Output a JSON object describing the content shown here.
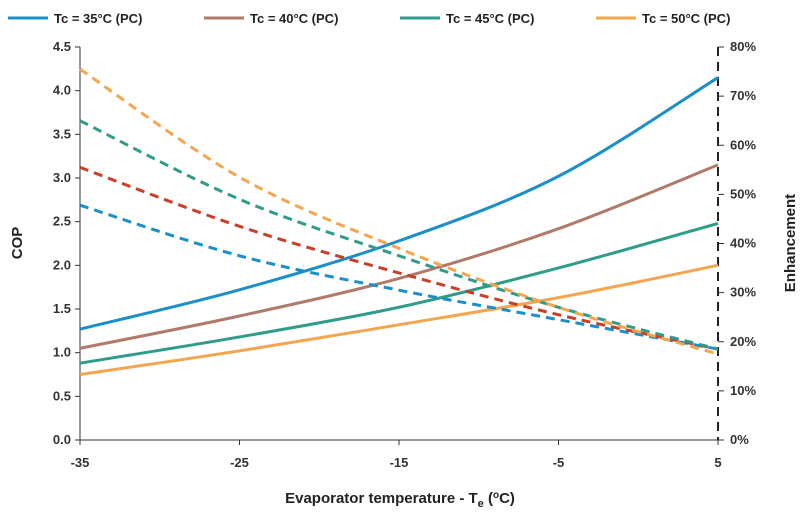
{
  "chart_data": {
    "type": "line",
    "x": [
      -35,
      -25,
      -15,
      -5,
      5
    ],
    "x_ticks": [
      "-35",
      "-25",
      "-15",
      "-5",
      "5"
    ],
    "xlabel": "Evaporator temperature - Te (°C)",
    "xlim": [
      -35,
      5
    ],
    "ylabel": "COP",
    "ylim": [
      0,
      4.5
    ],
    "y_ticks": [
      "0.0",
      "0.5",
      "1.0",
      "1.5",
      "2.0",
      "2.5",
      "3.0",
      "3.5",
      "4.0",
      "4.5"
    ],
    "y2label": "Enhancement",
    "y2lim": [
      0,
      80
    ],
    "y2_ticks": [
      "0%",
      "10%",
      "20%",
      "30%",
      "40%",
      "50%",
      "60%",
      "70%",
      "80%"
    ],
    "legend_position": "top",
    "grid": false,
    "series": [
      {
        "name": "Tc = 35°C (PC)",
        "color": "#1a8fc9",
        "axis": "left",
        "style": "solid",
        "values": [
          1.27,
          1.72,
          2.28,
          3.02,
          4.15
        ]
      },
      {
        "name": "Tc = 40°C (PC)",
        "color": "#b07a6a",
        "axis": "left",
        "style": "solid",
        "values": [
          1.05,
          1.42,
          1.85,
          2.42,
          3.15
        ]
      },
      {
        "name": "Tc = 45°C (PC)",
        "color": "#2e9c88",
        "axis": "left",
        "style": "solid",
        "values": [
          0.88,
          1.18,
          1.52,
          1.97,
          2.48
        ]
      },
      {
        "name": "Tc = 50°C (PC)",
        "color": "#f5a54e",
        "axis": "left",
        "style": "solid",
        "values": [
          0.75,
          1.02,
          1.32,
          1.63,
          2.0
        ]
      },
      {
        "name": "",
        "color": "#1a8fc9",
        "axis": "right",
        "style": "dashed",
        "values": [
          47.8,
          37.5,
          30.5,
          24.5,
          18.5
        ]
      },
      {
        "name": "",
        "color": "#c9402a",
        "axis": "right",
        "style": "dashed",
        "values": [
          55.5,
          43.5,
          34.0,
          25.5,
          18.5
        ]
      },
      {
        "name": "",
        "color": "#2e9c88",
        "axis": "right",
        "style": "dashed",
        "values": [
          65.0,
          49.0,
          37.5,
          27.0,
          18.5
        ]
      },
      {
        "name": "",
        "color": "#f5a54e",
        "axis": "right",
        "style": "dashed",
        "values": [
          75.5,
          53.5,
          39.0,
          27.0,
          17.5
        ]
      }
    ]
  }
}
